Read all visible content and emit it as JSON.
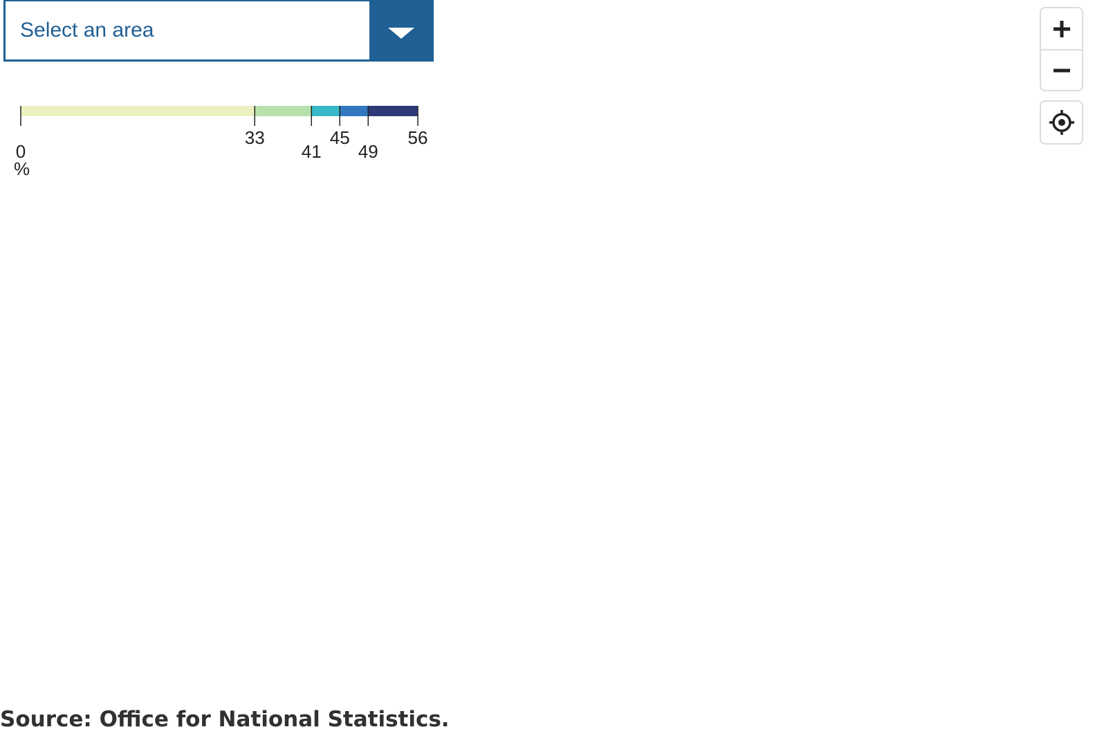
{
  "area_select": {
    "placeholder": "Select an area",
    "toggle_icon": "chevron-down-icon"
  },
  "colors": {
    "accent": "#206095",
    "text": "#222222",
    "control_border": "#dcdcdc"
  },
  "legend": {
    "unit": "%",
    "breaks": [
      0,
      33,
      41,
      45,
      49,
      56
    ],
    "tick_labels": [
      "0",
      "33",
      "41",
      "45",
      "49",
      "56"
    ],
    "colors": [
      "#edf1c2",
      "#b7e1aa",
      "#37b9c9",
      "#3278c0",
      "#2e3a78"
    ]
  },
  "map_controls": {
    "zoom_in_icon": "plus-icon",
    "zoom_out_icon": "minus-icon",
    "locate_icon": "crosshair-icon"
  },
  "source": {
    "text": "Source: Office for National Statistics."
  }
}
